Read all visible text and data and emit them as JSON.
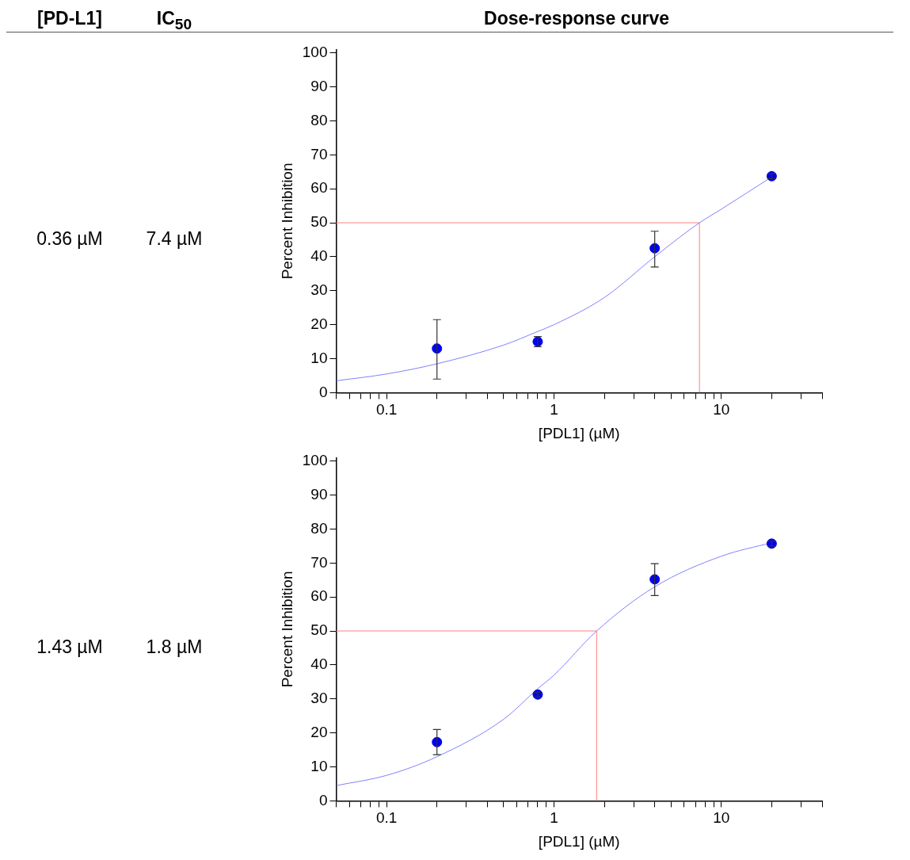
{
  "chart_data": [
    {
      "type": "other",
      "title": "Dose-response curve",
      "annotations": [
        "[PD-L1]",
        "IC$_{50}$"
      ]
    },
    {
      "type": "scatter",
      "xlabel": "[PDL1] (µM)",
      "ylabel": "Percent Inhibition",
      "annotations": [
        "0.36 µM",
        "7.4 µM"
      ],
      "log": "x",
      "grid": false,
      "legend": false,
      "xlim": [
        0.05,
        40
      ],
      "xticks": [
        {
          "value": 0.05,
          "label": null
        },
        {
          "value": 0.06,
          "label": null
        },
        {
          "value": 0.07,
          "label": null
        },
        {
          "value": 0.08,
          "label": null
        },
        {
          "value": 0.09,
          "label": null
        },
        0.1,
        {
          "value": 0.2,
          "label": null
        },
        {
          "value": 0.3,
          "label": null
        },
        {
          "value": 0.4,
          "label": null
        },
        {
          "value": 0.5,
          "label": null
        },
        {
          "value": 0.6,
          "label": null
        },
        {
          "value": 0.7,
          "label": null
        },
        {
          "value": 0.8,
          "label": null
        },
        {
          "value": 0.9,
          "label": null
        },
        1,
        {
          "value": 2,
          "label": null
        },
        {
          "value": 3,
          "label": null
        },
        {
          "value": 4,
          "label": null
        },
        {
          "value": 5,
          "label": null
        },
        {
          "value": 6,
          "label": null
        },
        {
          "value": 7,
          "label": null
        },
        {
          "value": 8,
          "label": null
        },
        {
          "value": 9,
          "label": null
        },
        10,
        {
          "value": 20,
          "label": null
        },
        {
          "value": 30,
          "label": null
        },
        {
          "value": 40,
          "label": null
        }
      ],
      "ylim": [
        0,
        101
      ],
      "yticks": [
        0,
        10,
        20,
        30,
        40,
        50,
        60,
        70,
        80,
        90,
        100
      ],
      "x": [
        0.2,
        0.8,
        4,
        20
      ],
      "series": [
        {
          "type": "scatter",
          "marker": "circle",
          "color": "#0000ee",
          "values": [
            13,
            15,
            42.5,
            63.7
          ],
          "errors": [
            [
              4,
              21.5
            ],
            [
              13.5,
              16.5
            ],
            [
              37,
              47.5
            ],
            [
              63,
              64.5
            ]
          ]
        },
        {
          "type": "line",
          "marker": "none",
          "color": "#8080ff",
          "x": [
            0.05,
            0.1,
            0.2,
            0.5,
            0.8,
            1,
            2,
            4,
            7.4,
            10,
            20
          ],
          "values": [
            3.5,
            5.5,
            8.5,
            14,
            18,
            20,
            28,
            40,
            50,
            54,
            63.5
          ]
        }
      ],
      "ref_lines": [
        {
          "axis": "y",
          "value": 50,
          "color": "#ff8080"
        },
        {
          "axis": "x",
          "value": 7.4,
          "color": "#ff8080"
        }
      ]
    },
    {
      "type": "scatter",
      "xlabel": "[PDL1] (µM)",
      "ylabel": "Percent Inhibition",
      "annotations": [
        "1.43 µM",
        "1.8 µM"
      ],
      "log": "x",
      "grid": false,
      "legend": false,
      "xlim": [
        0.05,
        40
      ],
      "xticks": [
        {
          "value": 0.05,
          "label": null
        },
        {
          "value": 0.06,
          "label": null
        },
        {
          "value": 0.07,
          "label": null
        },
        {
          "value": 0.08,
          "label": null
        },
        {
          "value": 0.09,
          "label": null
        },
        0.1,
        {
          "value": 0.2,
          "label": null
        },
        {
          "value": 0.3,
          "label": null
        },
        {
          "value": 0.4,
          "label": null
        },
        {
          "value": 0.5,
          "label": null
        },
        {
          "value": 0.6,
          "label": null
        },
        {
          "value": 0.7,
          "label": null
        },
        {
          "value": 0.8,
          "label": null
        },
        {
          "value": 0.9,
          "label": null
        },
        1,
        {
          "value": 2,
          "label": null
        },
        {
          "value": 3,
          "label": null
        },
        {
          "value": 4,
          "label": null
        },
        {
          "value": 5,
          "label": null
        },
        {
          "value": 6,
          "label": null
        },
        {
          "value": 7,
          "label": null
        },
        {
          "value": 8,
          "label": null
        },
        {
          "value": 9,
          "label": null
        },
        10,
        {
          "value": 20,
          "label": null
        },
        {
          "value": 30,
          "label": null
        },
        {
          "value": 40,
          "label": null
        }
      ],
      "ylim": [
        0,
        101
      ],
      "yticks": [
        0,
        10,
        20,
        30,
        40,
        50,
        60,
        70,
        80,
        90,
        100
      ],
      "x": [
        0.2,
        0.8,
        4,
        20
      ],
      "series": [
        {
          "type": "scatter",
          "marker": "circle",
          "color": "#0000ee",
          "values": [
            17.3,
            31.3,
            65.2,
            75.7
          ],
          "errors": [
            [
              13.6,
              21
            ],
            [
              30.5,
              32
            ],
            [
              60.4,
              69.8
            ],
            [
              75,
              76.4
            ]
          ]
        },
        {
          "type": "line",
          "marker": "none",
          "color": "#8080ff",
          "x": [
            0.05,
            0.1,
            0.2,
            0.5,
            0.8,
            1,
            1.8,
            4,
            10,
            20
          ],
          "values": [
            4.5,
            7.5,
            13,
            24,
            33,
            37,
            50,
            63,
            72,
            76
          ]
        }
      ],
      "ref_lines": [
        {
          "axis": "y",
          "value": 50,
          "color": "#ff8080"
        },
        {
          "axis": "x",
          "value": 1.8,
          "color": "#ff8080"
        }
      ]
    }
  ]
}
